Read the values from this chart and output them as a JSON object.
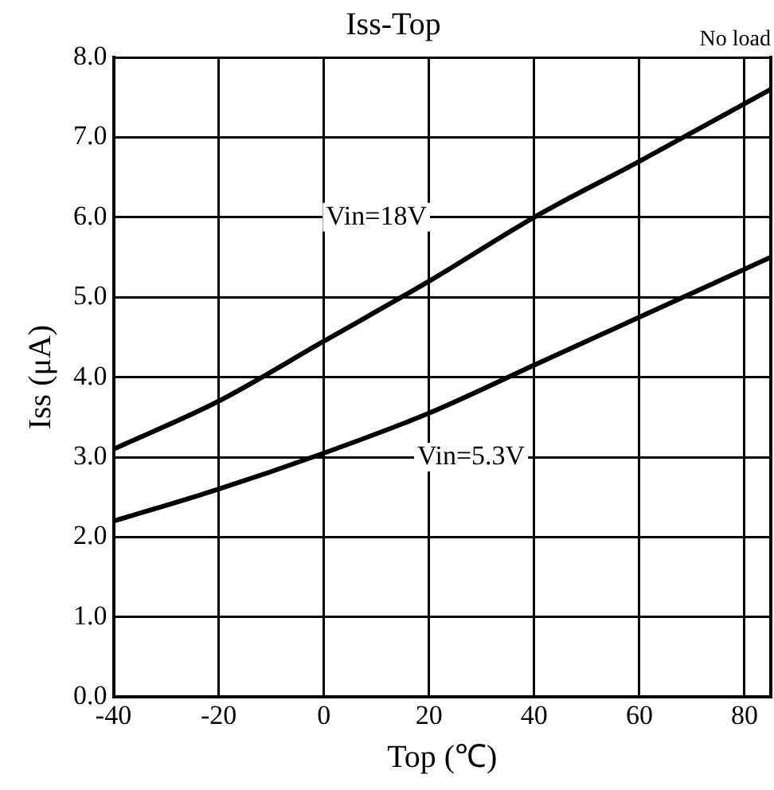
{
  "chart_data": {
    "type": "line",
    "title": "Iss-Top",
    "xlabel": "Top (℃)",
    "ylabel": "Iss (μA)",
    "annotations": [
      "No load"
    ],
    "series": [
      {
        "name": "Vin=18V",
        "color": "#000000",
        "x": [
          -40,
          -20,
          0,
          20,
          40,
          60,
          85
        ],
        "values": [
          3.1,
          3.7,
          4.45,
          5.2,
          6.0,
          6.7,
          7.6
        ]
      },
      {
        "name": "Vin=5.3V",
        "color": "#000000",
        "x": [
          -40,
          -20,
          0,
          20,
          40,
          60,
          85
        ],
        "values": [
          2.2,
          2.6,
          3.05,
          3.55,
          4.15,
          4.75,
          5.5
        ]
      }
    ],
    "xlim": [
      -40,
      85
    ],
    "xticks": [
      -40,
      -20,
      0,
      20,
      40,
      60,
      80
    ],
    "ylim": [
      0,
      8
    ],
    "yticks": [
      {
        "value": 0,
        "label": "0.0"
      },
      {
        "value": 1,
        "label": "1.0"
      },
      {
        "value": 2,
        "label": "2.0"
      },
      {
        "value": 3,
        "label": "3.0"
      },
      {
        "value": 4,
        "label": "4.0"
      },
      {
        "value": 5,
        "label": "5.0"
      },
      {
        "value": 6,
        "label": "6.0"
      },
      {
        "value": 7,
        "label": "7.0"
      },
      {
        "value": 8,
        "label": "8.0"
      }
    ],
    "grid": true,
    "legend": false,
    "marker": "none",
    "line_style": "solid"
  }
}
